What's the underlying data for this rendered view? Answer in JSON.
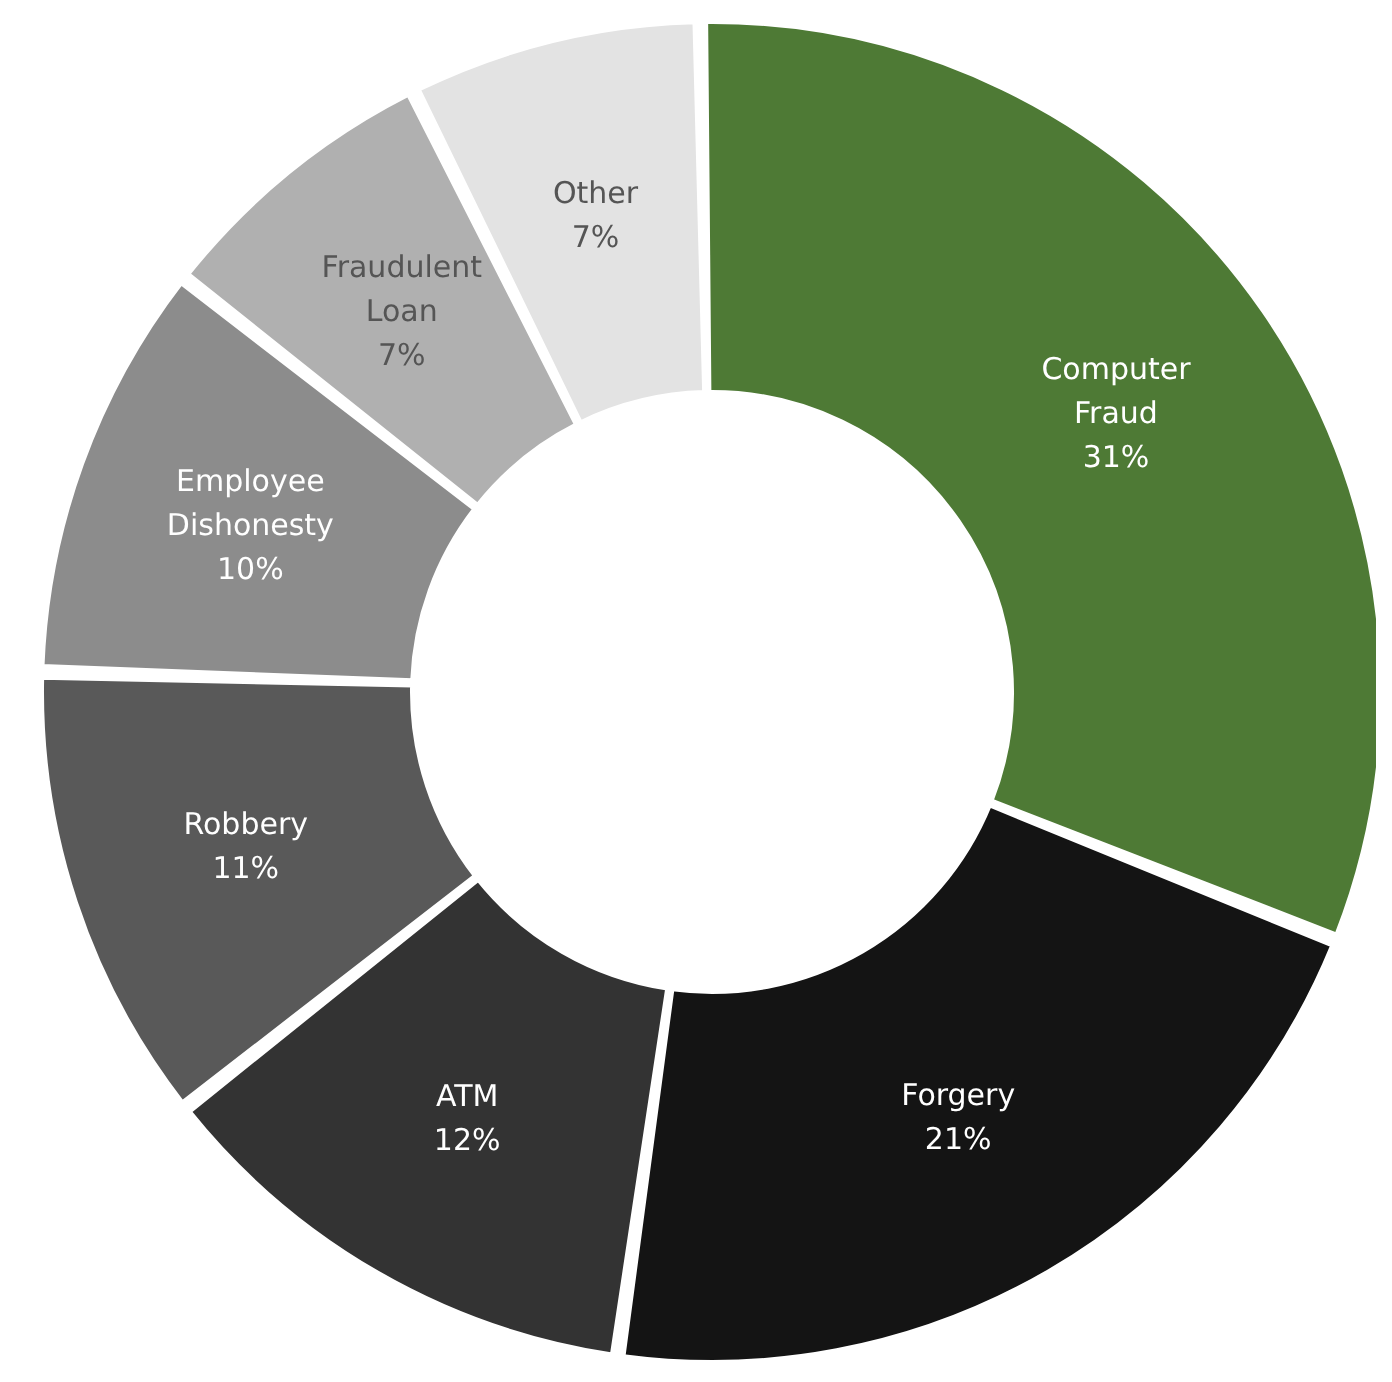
{
  "chart_data": {
    "type": "donut",
    "categories": [
      "Computer Fraud",
      "Forgery",
      "ATM",
      "Robbery",
      "Employee Dishonesty",
      "Fraudulent Loan",
      "Other"
    ],
    "values": [
      31,
      21,
      12,
      11,
      10,
      7,
      7
    ],
    "colors": [
      "#4e7a35",
      "#141414",
      "#333333",
      "#595959",
      "#8c8c8c",
      "#b0b0b0",
      "#e3e3e3"
    ],
    "value_labels": [
      "31%",
      "21%",
      "12%",
      "11%",
      "10%",
      "7%",
      "7%"
    ],
    "legend": false
  }
}
